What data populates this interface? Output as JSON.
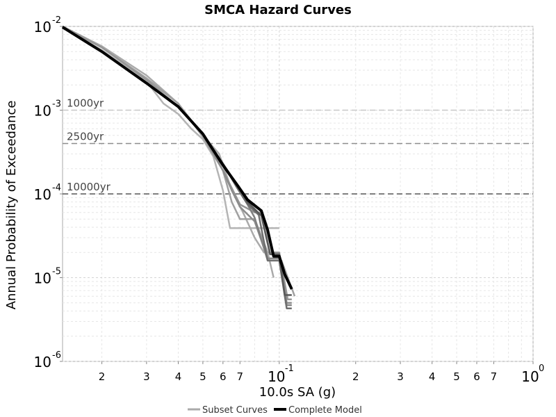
{
  "chart_data": {
    "type": "line",
    "title": "SMCA Hazard Curves",
    "xlabel": "10.0s SA (g)",
    "ylabel": "Annual Probability of Exceedance",
    "x_scale": "log",
    "y_scale": "log",
    "xlim": [
      0.014,
      1.0
    ],
    "ylim": [
      1e-06,
      0.01
    ],
    "grid": true,
    "x_ticks": [
      {
        "value": 0.02,
        "label": "2"
      },
      {
        "value": 0.03,
        "label": "3"
      },
      {
        "value": 0.04,
        "label": "4"
      },
      {
        "value": 0.05,
        "label": "5"
      },
      {
        "value": 0.06,
        "label": "6"
      },
      {
        "value": 0.07,
        "label": "7"
      },
      {
        "value": 0.1,
        "base": "10",
        "exp": "-1"
      },
      {
        "value": 0.2,
        "label": "2"
      },
      {
        "value": 0.3,
        "label": "3"
      },
      {
        "value": 0.4,
        "label": "4"
      },
      {
        "value": 0.5,
        "label": "5"
      },
      {
        "value": 0.6,
        "label": "6"
      },
      {
        "value": 0.7,
        "label": "7"
      },
      {
        "value": 1.0,
        "base": "10",
        "exp": "0"
      }
    ],
    "y_ticks": [
      {
        "value": 0.01,
        "base": "10",
        "exp": "-2"
      },
      {
        "value": 0.001,
        "base": "10",
        "exp": "-3"
      },
      {
        "value": 0.0001,
        "base": "10",
        "exp": "-4"
      },
      {
        "value": 1e-05,
        "base": "10",
        "exp": "-5"
      },
      {
        "value": 1e-06,
        "base": "10",
        "exp": "-6"
      }
    ],
    "reference_lines": [
      {
        "label": "1000yr",
        "y": 0.001,
        "color": "#c8c8c8"
      },
      {
        "label": "2500yr",
        "y": 0.0004,
        "color": "#8c8c8c"
      },
      {
        "label": "10000yr",
        "y": 0.0001,
        "color": "#555555"
      }
    ],
    "legend": {
      "position": "bottom",
      "entries": [
        {
          "label": "Subset Curves",
          "color": "#aaaaaa"
        },
        {
          "label": "Complete Model",
          "color": "#000000"
        }
      ]
    },
    "series": [
      {
        "group": "subset",
        "color": "#b4b4b4",
        "x": [
          0.014,
          0.02,
          0.03,
          0.035,
          0.04,
          0.045,
          0.05,
          0.055,
          0.06,
          0.064,
          0.068,
          0.1
        ],
        "y": [
          0.0098,
          0.0052,
          0.0022,
          0.0012,
          0.0009,
          0.0006,
          0.00045,
          0.00028,
          0.00011,
          3.9e-05,
          3.9e-05,
          3.9e-05
        ]
      },
      {
        "group": "subset",
        "color": "#aaaaaa",
        "x": [
          0.014,
          0.02,
          0.03,
          0.04,
          0.05,
          0.058,
          0.065,
          0.072,
          0.08,
          0.087,
          0.09,
          0.095
        ],
        "y": [
          0.01,
          0.0058,
          0.0026,
          0.0012,
          0.0005,
          0.0003,
          0.00011,
          6e-05,
          3e-05,
          2e-05,
          2e-05,
          1e-05
        ]
      },
      {
        "group": "subset",
        "color": "#a0a0a0",
        "x": [
          0.014,
          0.02,
          0.03,
          0.04,
          0.05,
          0.06,
          0.065,
          0.07,
          0.08,
          0.09,
          0.095,
          0.102,
          0.115
        ],
        "y": [
          0.01,
          0.0056,
          0.0024,
          0.0012,
          0.00048,
          0.00019,
          8e-05,
          5e-05,
          5e-05,
          2e-05,
          2e-05,
          1.6e-05,
          6e-06
        ]
      },
      {
        "group": "subset",
        "color": "#969696",
        "x": [
          0.014,
          0.02,
          0.03,
          0.04,
          0.05,
          0.06,
          0.07,
          0.08,
          0.085,
          0.092,
          0.1,
          0.108,
          0.112
        ],
        "y": [
          0.01,
          0.0056,
          0.0023,
          0.0011,
          0.00052,
          0.00019,
          7.5e-05,
          6e-05,
          6e-05,
          2e-05,
          2e-05,
          5.5e-06,
          5.5e-06
        ]
      },
      {
        "group": "subset",
        "color": "#8c8c8c",
        "x": [
          0.014,
          0.02,
          0.03,
          0.04,
          0.05,
          0.06,
          0.065,
          0.07,
          0.08,
          0.09,
          0.1,
          0.107,
          0.112
        ],
        "y": [
          0.01,
          0.005,
          0.0021,
          0.0011,
          0.00051,
          0.00019,
          0.00011,
          7e-05,
          4.7e-05,
          1.7e-05,
          1.7e-05,
          5e-06,
          5e-06
        ]
      },
      {
        "group": "subset",
        "color": "#808080",
        "x": [
          0.014,
          0.02,
          0.03,
          0.04,
          0.05,
          0.06,
          0.068,
          0.075,
          0.08,
          0.09,
          0.1,
          0.107,
          0.112
        ],
        "y": [
          0.01,
          0.005,
          0.0021,
          0.0011,
          0.00052,
          0.00023,
          0.00012,
          7.5e-05,
          5.2e-05,
          1.6e-05,
          1.6e-05,
          4.7e-06,
          4.7e-06
        ]
      },
      {
        "group": "subset",
        "color": "#6e6e6e",
        "x": [
          0.014,
          0.02,
          0.03,
          0.04,
          0.05,
          0.06,
          0.068,
          0.075,
          0.083,
          0.09,
          0.1,
          0.107,
          0.112
        ],
        "y": [
          0.01,
          0.005,
          0.0021,
          0.0011,
          0.00052,
          0.00023,
          0.00012,
          7.5e-05,
          5.6e-05,
          1.6e-05,
          1.6e-05,
          4.3e-06,
          4.3e-06
        ]
      },
      {
        "group": "subset",
        "color": "#5a5a5a",
        "x": [
          0.014,
          0.02,
          0.03,
          0.04,
          0.05,
          0.06,
          0.068,
          0.075,
          0.085,
          0.092,
          0.1,
          0.105,
          0.112
        ],
        "y": [
          0.01,
          0.005,
          0.0021,
          0.0011,
          0.00052,
          0.00023,
          0.00013,
          8e-05,
          5.5e-05,
          1.9e-05,
          1.9e-05,
          6.2e-06,
          6.2e-06
        ]
      },
      {
        "group": "complete",
        "color": "#000000",
        "x": [
          0.014,
          0.02,
          0.03,
          0.04,
          0.05,
          0.06,
          0.068,
          0.075,
          0.085,
          0.09,
          0.095,
          0.1,
          0.105,
          0.112
        ],
        "y": [
          0.0098,
          0.005,
          0.0021,
          0.0011,
          0.00052,
          0.00022,
          0.00013,
          8.5e-05,
          6.3e-05,
          3.7e-05,
          1.8e-05,
          1.8e-05,
          1.1e-05,
          7.3e-06
        ]
      }
    ]
  }
}
